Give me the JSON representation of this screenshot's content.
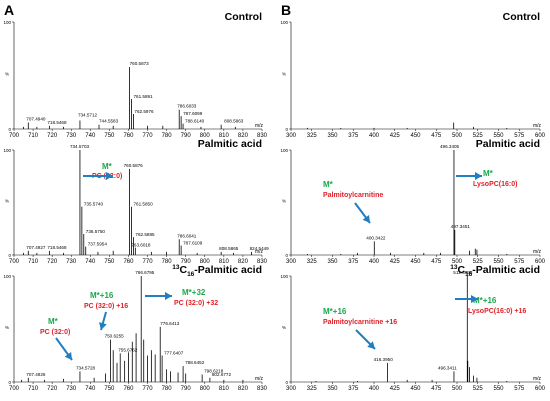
{
  "panel_labels": [
    "A",
    "B"
  ],
  "colors": {
    "trace": "#000000",
    "arrow": "#1f7fc0",
    "green_label": "#17a84b",
    "red_label": "#e0222a"
  },
  "chart_data": [
    {
      "type": "mass-spectrum",
      "panel": "A",
      "title": "Control",
      "xlabel": "m/z",
      "ylabel": "%",
      "xlim": [
        700,
        830
      ],
      "ylim": [
        0,
        100
      ],
      "x_ticks": [
        700,
        710,
        720,
        730,
        740,
        750,
        760,
        770,
        780,
        790,
        800,
        810,
        820,
        830
      ],
      "y_ticks": [
        0,
        100
      ],
      "peaks": [
        {
          "mz": 705.0,
          "intensity": 2
        },
        {
          "mz": 707.494,
          "intensity": 6
        },
        {
          "mz": 712.0,
          "intensity": 2
        },
        {
          "mz": 718.5468,
          "intensity": 3
        },
        {
          "mz": 726.0,
          "intensity": 2
        },
        {
          "mz": 734.5712,
          "intensity": 8
        },
        {
          "mz": 744.5583,
          "intensity": 4
        },
        {
          "mz": 752.0,
          "intensity": 3
        },
        {
          "mz": 760.5873,
          "intensity": 58
        },
        {
          "mz": 761.5891,
          "intensity": 28
        },
        {
          "mz": 762.5976,
          "intensity": 14
        },
        {
          "mz": 770.0,
          "intensity": 3
        },
        {
          "mz": 778.0,
          "intensity": 3
        },
        {
          "mz": 786.6033,
          "intensity": 18
        },
        {
          "mz": 787.6099,
          "intensity": 12
        },
        {
          "mz": 788.614,
          "intensity": 5
        },
        {
          "mz": 798.0,
          "intensity": 2
        },
        {
          "mz": 808.5863,
          "intensity": 4
        },
        {
          "mz": 816.0,
          "intensity": 2
        }
      ],
      "peak_labels": [
        {
          "mz": 707.494,
          "text": "707.4940"
        },
        {
          "mz": 718.5468,
          "text": "718.5468"
        },
        {
          "mz": 734.5712,
          "text": "734.5712"
        },
        {
          "mz": 744.5583,
          "text": "744.5583"
        },
        {
          "mz": 760.5873,
          "text": "760.5873"
        },
        {
          "mz": 761.5891,
          "text": "761.5891"
        },
        {
          "mz": 762.5976,
          "text": "762.5976"
        },
        {
          "mz": 786.6033,
          "text": "786.6033"
        },
        {
          "mz": 787.6099,
          "text": "787.6099"
        },
        {
          "mz": 788.614,
          "text": "788.6140"
        },
        {
          "mz": 808.5863,
          "text": "808.5863"
        }
      ],
      "annotations": []
    },
    {
      "type": "mass-spectrum",
      "panel": "A",
      "title": "Palmitic acid",
      "xlabel": "m/z",
      "ylabel": "%",
      "xlim": [
        700,
        830
      ],
      "ylim": [
        0,
        100
      ],
      "x_ticks": [
        700,
        710,
        720,
        730,
        740,
        750,
        760,
        770,
        780,
        790,
        800,
        810,
        820,
        830
      ],
      "y_ticks": [
        0,
        100
      ],
      "peaks": [
        {
          "mz": 705.0,
          "intensity": 2
        },
        {
          "mz": 707.4927,
          "intensity": 4
        },
        {
          "mz": 712.0,
          "intensity": 2
        },
        {
          "mz": 718.5468,
          "intensity": 4
        },
        {
          "mz": 726.0,
          "intensity": 2
        },
        {
          "mz": 734.5703,
          "intensity": 100
        },
        {
          "mz": 735.574,
          "intensity": 46
        },
        {
          "mz": 736.575,
          "intensity": 20
        },
        {
          "mz": 737.5954,
          "intensity": 8
        },
        {
          "mz": 744.0,
          "intensity": 3
        },
        {
          "mz": 752.0,
          "intensity": 4
        },
        {
          "mz": 760.5876,
          "intensity": 82
        },
        {
          "mz": 761.585,
          "intensity": 46
        },
        {
          "mz": 762.5885,
          "intensity": 17
        },
        {
          "mz": 763.6018,
          "intensity": 7
        },
        {
          "mz": 772.0,
          "intensity": 3
        },
        {
          "mz": 780.0,
          "intensity": 3
        },
        {
          "mz": 786.6041,
          "intensity": 15
        },
        {
          "mz": 787.6109,
          "intensity": 9
        },
        {
          "mz": 796.0,
          "intensity": 2
        },
        {
          "mz": 808.5865,
          "intensity": 3
        },
        {
          "mz": 815.0,
          "intensity": 2
        },
        {
          "mz": 824.5449,
          "intensity": 3
        }
      ],
      "peak_labels": [
        {
          "mz": 707.4927,
          "text": "707.4927"
        },
        {
          "mz": 718.5468,
          "text": "718.5468"
        },
        {
          "mz": 734.5703,
          "text": "734.5703"
        },
        {
          "mz": 735.574,
          "text": "735.5740"
        },
        {
          "mz": 736.575,
          "text": "736.5750"
        },
        {
          "mz": 737.5954,
          "text": "737.5954"
        },
        {
          "mz": 760.5876,
          "text": "760.5876"
        },
        {
          "mz": 761.585,
          "text": "761.5850"
        },
        {
          "mz": 762.5885,
          "text": "762.5885"
        },
        {
          "mz": 763.6018,
          "text": "763.6018"
        },
        {
          "mz": 786.6041,
          "text": "786.6041"
        },
        {
          "mz": 787.6109,
          "text": "787.6109"
        },
        {
          "mz": 808.5865,
          "text": "808.5865"
        },
        {
          "mz": 824.5449,
          "text": "824.5449"
        }
      ],
      "annotations": [
        {
          "green": "M*",
          "red": "PC (32:0)"
        }
      ]
    },
    {
      "type": "mass-spectrum",
      "panel": "A",
      "title": "13C16-Palmitic acid",
      "title_parts": {
        "sup": "13",
        "c": "C",
        "sub": "16",
        "rest": "-Palmitic acid"
      },
      "xlabel": "m/z",
      "ylabel": "%",
      "xlim": [
        700,
        830
      ],
      "ylim": [
        0,
        100
      ],
      "x_ticks": [
        700,
        710,
        720,
        730,
        740,
        750,
        760,
        770,
        780,
        790,
        800,
        810,
        820,
        830
      ],
      "y_ticks": [
        0,
        100
      ],
      "peaks": [
        {
          "mz": 704.0,
          "intensity": 2
        },
        {
          "mz": 707.4926,
          "intensity": 4
        },
        {
          "mz": 716.0,
          "intensity": 2
        },
        {
          "mz": 726.0,
          "intensity": 3
        },
        {
          "mz": 734.5728,
          "intensity": 10
        },
        {
          "mz": 742.0,
          "intensity": 4
        },
        {
          "mz": 748.0,
          "intensity": 8
        },
        {
          "mz": 750.6255,
          "intensity": 40
        },
        {
          "mz": 752.0,
          "intensity": 30
        },
        {
          "mz": 754.0,
          "intensity": 18
        },
        {
          "mz": 755.6762,
          "intensity": 27
        },
        {
          "mz": 758.0,
          "intensity": 20
        },
        {
          "mz": 760.0,
          "intensity": 28
        },
        {
          "mz": 762.0,
          "intensity": 38
        },
        {
          "mz": 764.0,
          "intensity": 46
        },
        {
          "mz": 766.6795,
          "intensity": 100
        },
        {
          "mz": 768.0,
          "intensity": 40
        },
        {
          "mz": 770.0,
          "intensity": 25
        },
        {
          "mz": 772.0,
          "intensity": 30
        },
        {
          "mz": 774.0,
          "intensity": 26
        },
        {
          "mz": 776.6413,
          "intensity": 52
        },
        {
          "mz": 777.6407,
          "intensity": 25
        },
        {
          "mz": 780.0,
          "intensity": 12
        },
        {
          "mz": 782.0,
          "intensity": 10
        },
        {
          "mz": 786.0,
          "intensity": 9
        },
        {
          "mz": 788.6452,
          "intensity": 15
        },
        {
          "mz": 790.0,
          "intensity": 8
        },
        {
          "mz": 798.6218,
          "intensity": 7
        },
        {
          "mz": 802.6772,
          "intensity": 4
        },
        {
          "mz": 810.0,
          "intensity": 2
        },
        {
          "mz": 820.0,
          "intensity": 2
        }
      ],
      "peak_labels": [
        {
          "mz": 707.4926,
          "text": "707.4926"
        },
        {
          "mz": 734.5728,
          "text": "734.5728"
        },
        {
          "mz": 750.6255,
          "text": "750.6255"
        },
        {
          "mz": 755.6762,
          "text": "755.6762"
        },
        {
          "mz": 766.6795,
          "text": "766.6795"
        },
        {
          "mz": 776.6413,
          "text": "776.6413"
        },
        {
          "mz": 777.6407,
          "text": "777.6407"
        },
        {
          "mz": 788.6452,
          "text": "788.6452"
        },
        {
          "mz": 798.6218,
          "text": "798.6218"
        },
        {
          "mz": 802.6772,
          "text": "802.6772"
        }
      ],
      "annotations": [
        {
          "green": "M*",
          "red": "PC (32:0)"
        },
        {
          "green": "M*+16",
          "red": "PC (32:0) +16"
        },
        {
          "green": "M*+32",
          "red": "PC (32:0) +32"
        }
      ]
    },
    {
      "type": "mass-spectrum",
      "panel": "B",
      "title": "Control",
      "xlabel": "m/z",
      "ylabel": "%",
      "xlim": [
        300,
        600
      ],
      "ylim": [
        0,
        100
      ],
      "x_ticks": [
        300,
        325,
        350,
        375,
        400,
        425,
        450,
        475,
        500,
        525,
        550,
        575,
        600
      ],
      "y_ticks": [
        0,
        100
      ],
      "peaks": [
        {
          "mz": 320.0,
          "intensity": 1
        },
        {
          "mz": 360.0,
          "intensity": 1
        },
        {
          "mz": 400.0,
          "intensity": 1
        },
        {
          "mz": 440.0,
          "intensity": 1
        },
        {
          "mz": 496.0,
          "intensity": 6
        },
        {
          "mz": 520.0,
          "intensity": 2
        },
        {
          "mz": 560.0,
          "intensity": 1
        }
      ],
      "peak_labels": [],
      "annotations": []
    },
    {
      "type": "mass-spectrum",
      "panel": "B",
      "title": "Palmitic acid",
      "xlabel": "m/z",
      "ylabel": "%",
      "xlim": [
        300,
        600
      ],
      "ylim": [
        0,
        100
      ],
      "x_ticks": [
        300,
        325,
        350,
        375,
        400,
        425,
        450,
        475,
        500,
        525,
        550,
        575,
        600
      ],
      "y_ticks": [
        0,
        100
      ],
      "peaks": [
        {
          "mz": 320.0,
          "intensity": 1
        },
        {
          "mz": 360.0,
          "intensity": 1
        },
        {
          "mz": 380.0,
          "intensity": 2
        },
        {
          "mz": 400.3422,
          "intensity": 13
        },
        {
          "mz": 420.0,
          "intensity": 2
        },
        {
          "mz": 460.0,
          "intensity": 2
        },
        {
          "mz": 480.0,
          "intensity": 2
        },
        {
          "mz": 496.3405,
          "intensity": 100
        },
        {
          "mz": 497.3451,
          "intensity": 24
        },
        {
          "mz": 515.0,
          "intensity": 4
        },
        {
          "mz": 522.0,
          "intensity": 6
        },
        {
          "mz": 524.0,
          "intensity": 5
        },
        {
          "mz": 560.0,
          "intensity": 1
        }
      ],
      "peak_labels": [
        {
          "mz": 400.3422,
          "text": "400.3422"
        },
        {
          "mz": 496.3405,
          "text": "496.3405"
        },
        {
          "mz": 497.3451,
          "text": "497.3451"
        }
      ],
      "annotations": [
        {
          "green": "M*",
          "red": "Palmitoylcarnitine"
        },
        {
          "green": "M*",
          "red": "LysoPC(16:0)"
        }
      ]
    },
    {
      "type": "mass-spectrum",
      "panel": "B",
      "title": "13C16-Palmitic acid",
      "title_parts": {
        "sup": "13",
        "c": "C",
        "sub": "16",
        "rest": "-Palmitic acid"
      },
      "xlabel": "m/z",
      "ylabel": "%",
      "xlim": [
        300,
        600
      ],
      "ylim": [
        0,
        100
      ],
      "x_ticks": [
        300,
        325,
        350,
        375,
        400,
        425,
        450,
        475,
        500,
        525,
        550,
        575,
        600
      ],
      "y_ticks": [
        0,
        100
      ],
      "peaks": [
        {
          "mz": 330.0,
          "intensity": 1
        },
        {
          "mz": 380.0,
          "intensity": 1
        },
        {
          "mz": 416.395,
          "intensity": 18
        },
        {
          "mz": 440.0,
          "intensity": 2
        },
        {
          "mz": 470.0,
          "intensity": 2
        },
        {
          "mz": 496.3411,
          "intensity": 10
        },
        {
          "mz": 512.3938,
          "intensity": 100
        },
        {
          "mz": 513.0,
          "intensity": 20
        },
        {
          "mz": 515.0,
          "intensity": 14
        },
        {
          "mz": 520.0,
          "intensity": 6
        },
        {
          "mz": 524.0,
          "intensity": 4
        },
        {
          "mz": 560.0,
          "intensity": 1
        }
      ],
      "peak_labels": [
        {
          "mz": 416.395,
          "text": "416.3950"
        },
        {
          "mz": 496.3411,
          "text": "496.3411"
        },
        {
          "mz": 512.3938,
          "text": "512.3938"
        }
      ],
      "annotations": [
        {
          "green": "M*+16",
          "red": "Palmitoylcarnitine +16"
        },
        {
          "green": "M*+16",
          "red": "LysoPC(16:0) +16"
        }
      ]
    }
  ]
}
